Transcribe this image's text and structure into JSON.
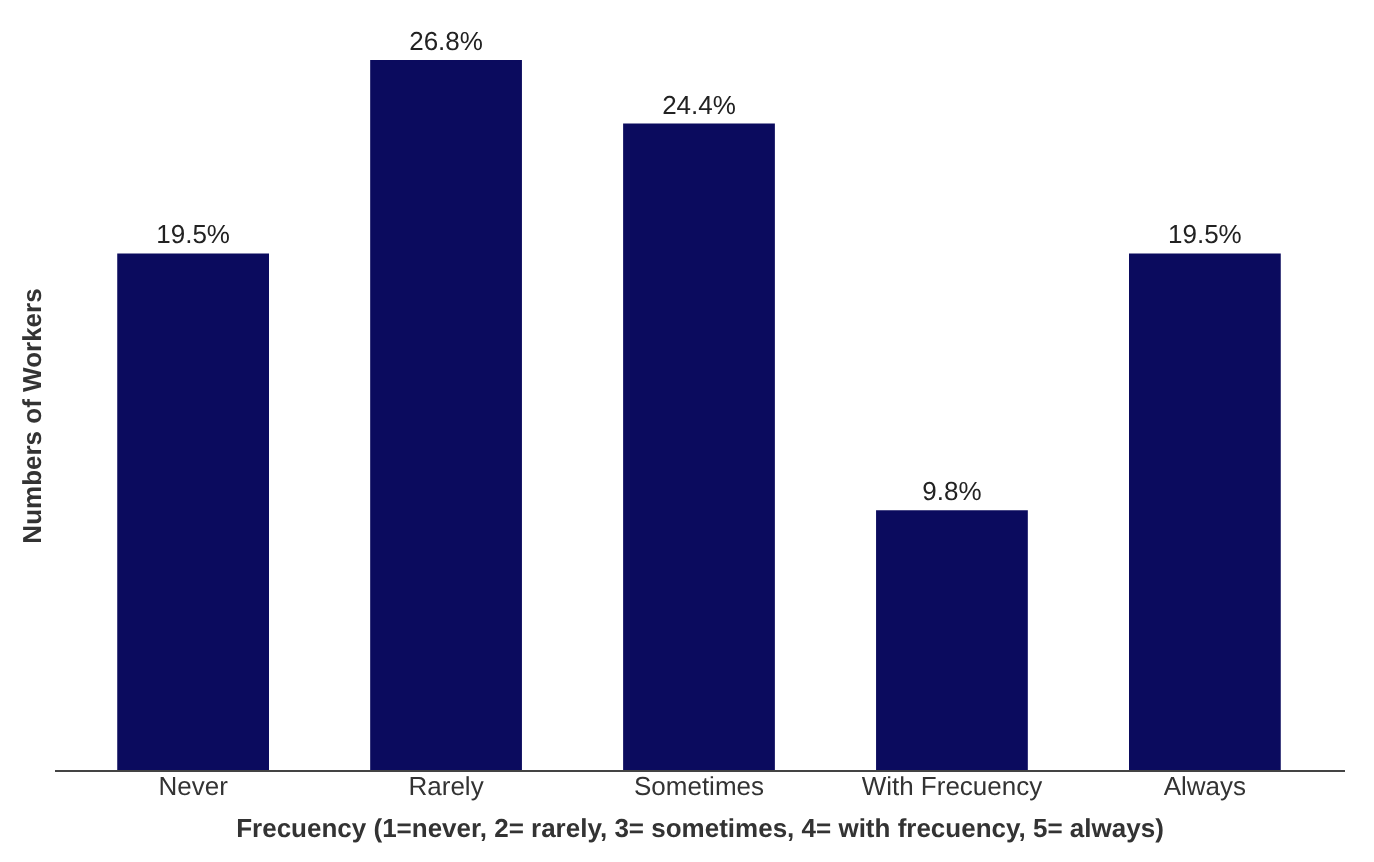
{
  "chart_data": {
    "type": "bar",
    "xlabel": "Frecuency (1=never, 2= rarely, 3= sometimes, 4= with frecuency, 5= always)",
    "ylabel": "Numbers of Workers",
    "categories": [
      "Never",
      "Rarely",
      "Sometimes",
      "With Frecuency",
      "Always"
    ],
    "values": [
      19.5,
      26.8,
      24.4,
      9.8,
      19.5
    ],
    "value_labels": [
      "19.5%",
      "26.8%",
      "24.4%",
      "9.8%",
      "19.5%"
    ],
    "color": "#0b0b5e",
    "tick_labels": "x",
    "grid": false
  }
}
